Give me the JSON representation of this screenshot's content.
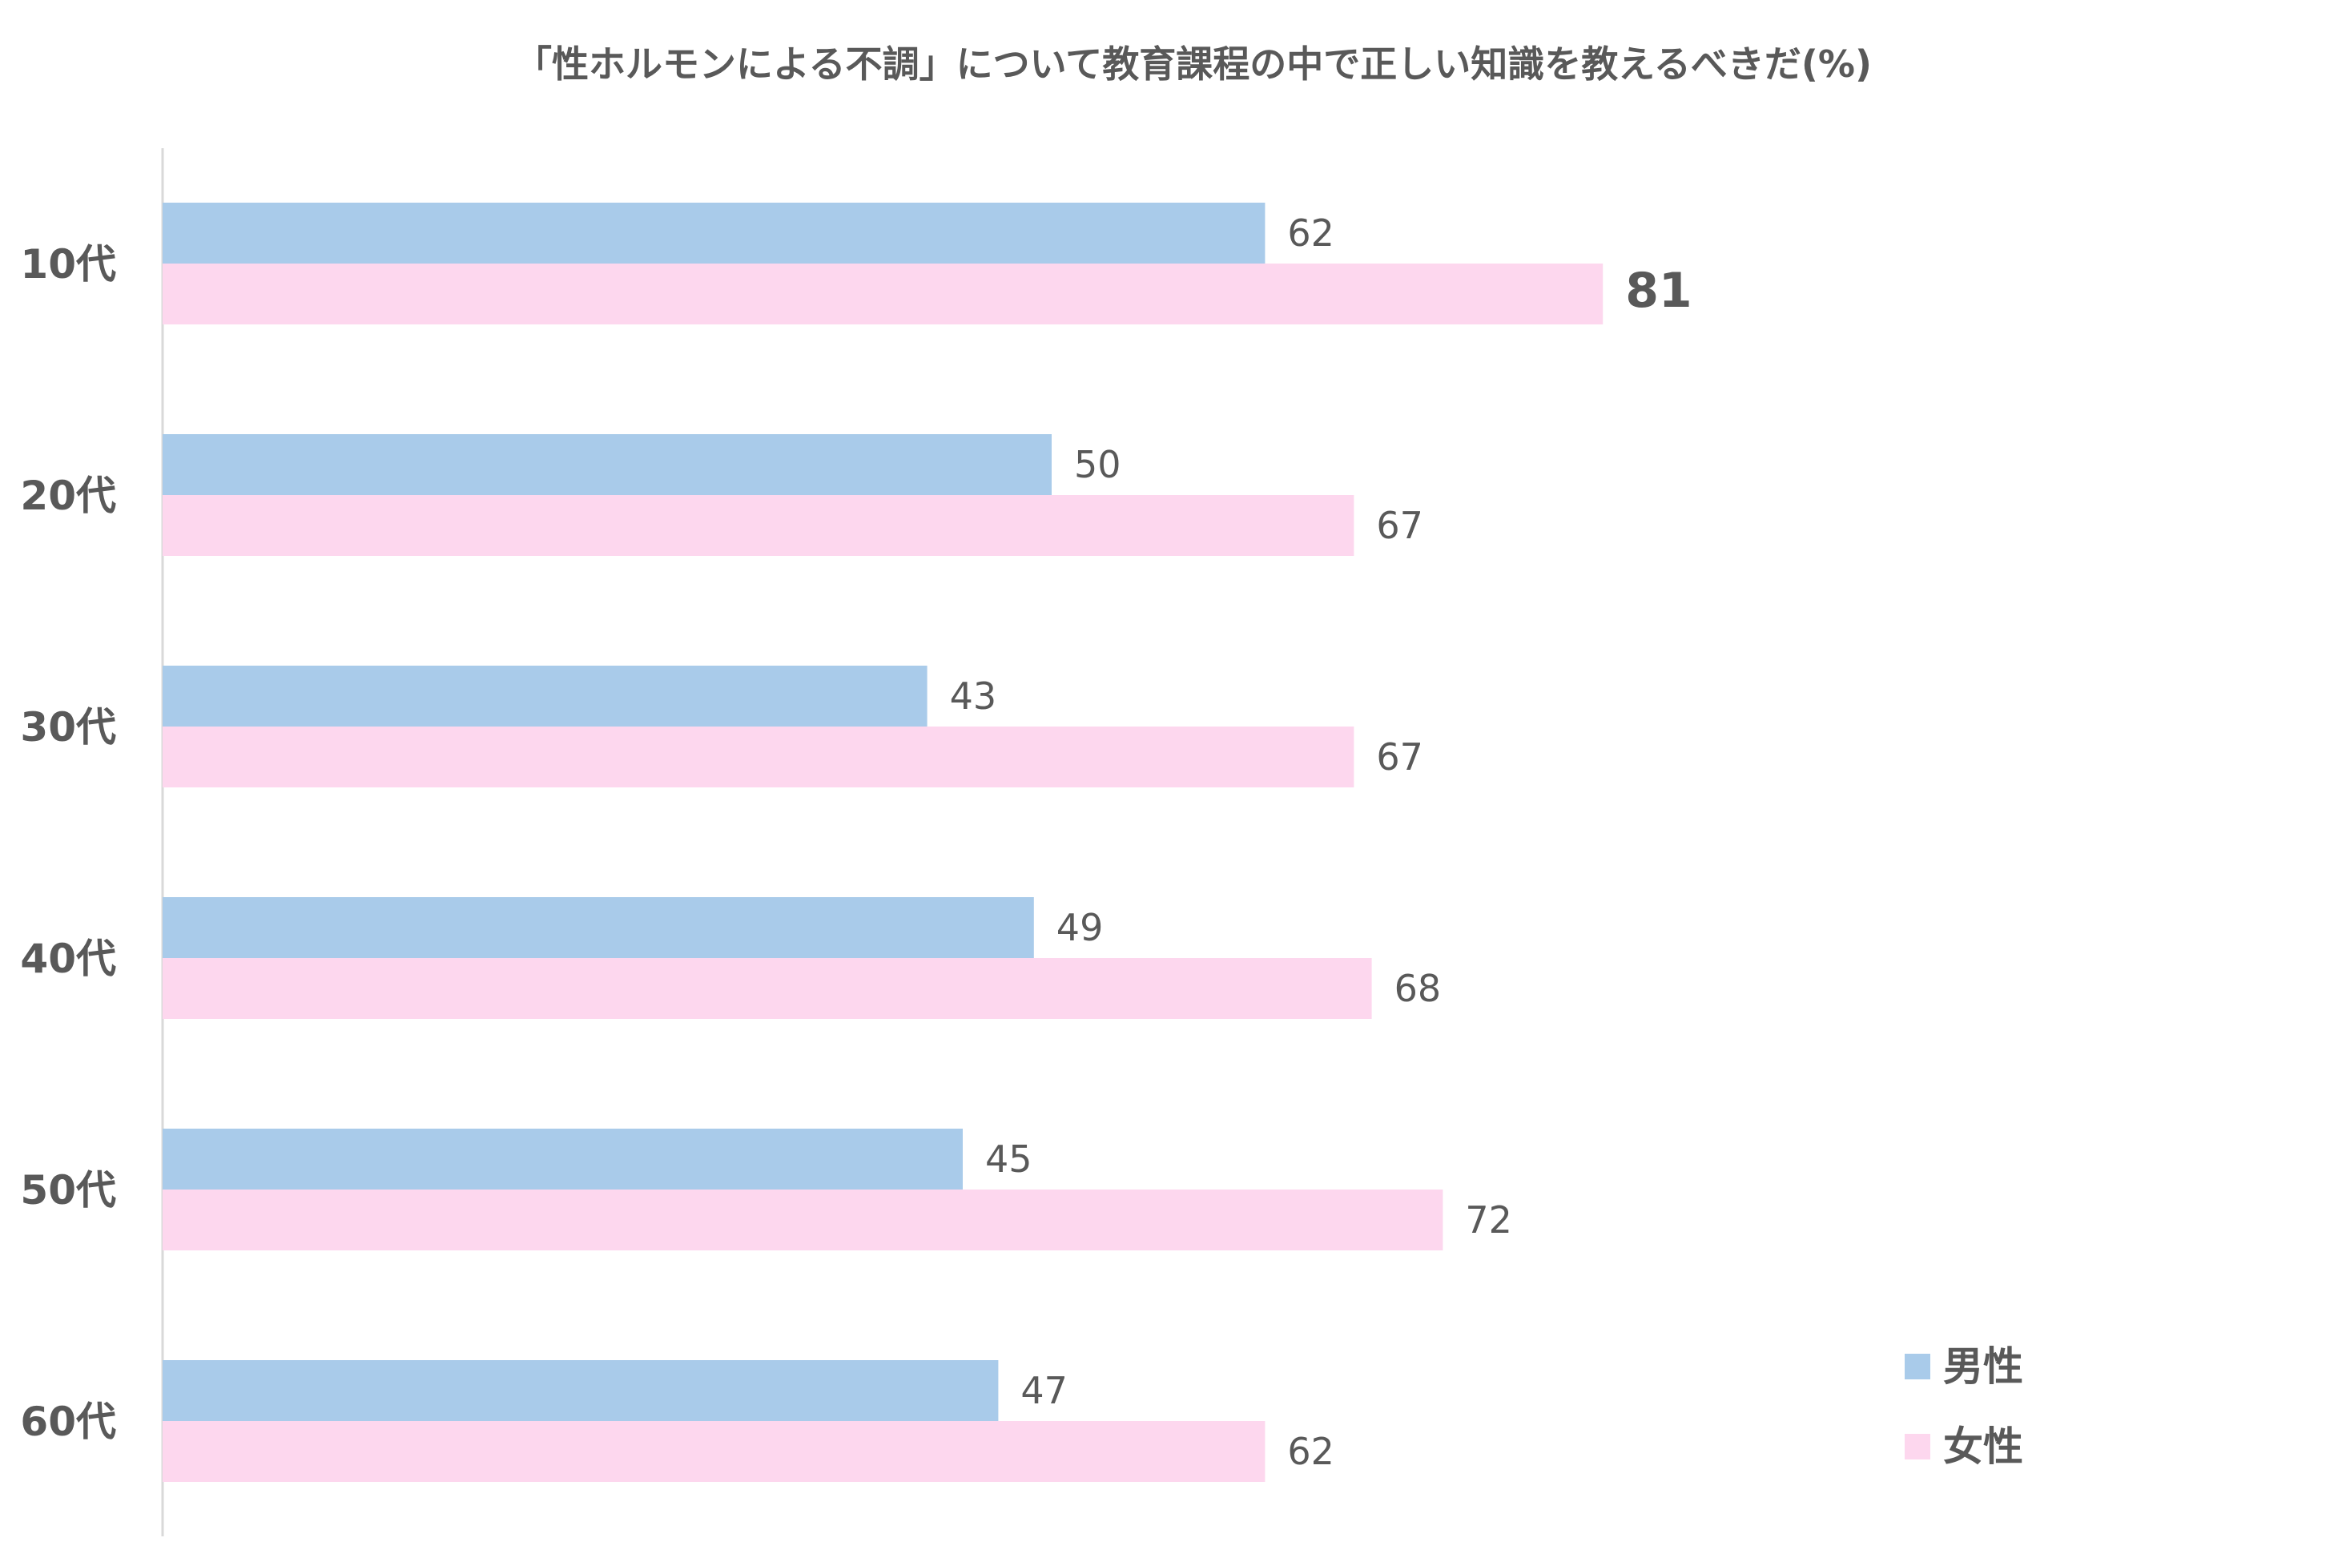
{
  "chart_data": {
    "type": "bar",
    "orientation": "horizontal",
    "title": "「性ホルモンによる不調」について教育課程の中で正しい知識を教えるべきだ(%)",
    "categories": [
      "10代",
      "20代",
      "30代",
      "40代",
      "50代",
      "60代"
    ],
    "series": [
      {
        "name": "男性",
        "values": [
          62,
          50,
          43,
          49,
          45,
          47
        ],
        "color": "#A9CBEA"
      },
      {
        "name": "女性",
        "values": [
          81,
          67,
          67,
          68,
          72,
          62
        ],
        "color": "#FDD7EE"
      }
    ],
    "highlight": {
      "series": 1,
      "index": 0,
      "color": "#C00000"
    },
    "label_color": "#595959",
    "xlim": [
      0,
      100
    ],
    "grid": false,
    "legend_position": "bottom-right"
  }
}
